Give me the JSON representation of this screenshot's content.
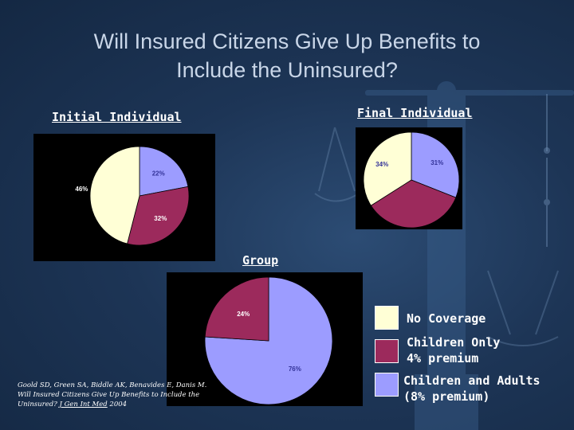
{
  "title_line1": "Will Insured Citizens Give Up Benefits to",
  "title_line2": "Include the Uninsured?",
  "labels": {
    "initial": "Initial Individual",
    "final": "Final Individual",
    "group": "Group"
  },
  "colors": {
    "no_coverage": "#ffffd6",
    "children_only": "#9c2a5c",
    "children_and_adults": "#9c9cff"
  },
  "legend": {
    "no_coverage": "No Coverage",
    "children_only_1": "Children Only",
    "children_only_2": "4% premium",
    "children_adults_1": "Children and Adults",
    "children_adults_2": "(8% premium)"
  },
  "citation": {
    "line1": "Goold SD, Green SA, Biddle AK, Benavides E, Danis M.",
    "line2": "Will Insured Citizens Give Up Benefits to Include the",
    "line3a": "Uninsured?",
    "line3b": "J Gen Int Med",
    "line3c": "2004"
  },
  "chart_data": [
    {
      "type": "pie",
      "categories": [
        "Children and Adults",
        "Children Only",
        "No Coverage"
      ],
      "values": [
        22,
        32,
        46
      ],
      "labels": [
        "22%",
        "32%",
        "46%"
      ]
    },
    {
      "type": "pie",
      "categories": [
        "Children and Adults",
        "Children Only",
        "No Coverage"
      ],
      "values": [
        31,
        35,
        34
      ],
      "labels": [
        "31%",
        "35%",
        "34%"
      ]
    },
    {
      "type": "pie",
      "categories": [
        "Children and Adults",
        "Children Only"
      ],
      "values": [
        76,
        24
      ],
      "labels": [
        "76%",
        "24%"
      ]
    }
  ]
}
